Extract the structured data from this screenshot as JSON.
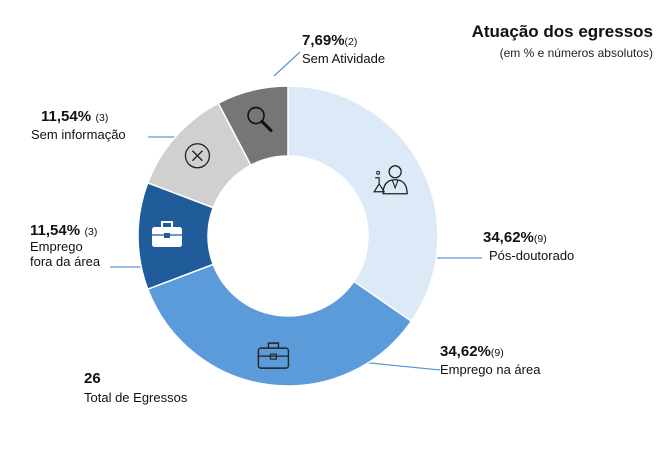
{
  "chart_data": {
    "type": "pie",
    "variant": "donut",
    "title": "Atuação dos egressos",
    "subtitle": "(em % e números absolutos)",
    "slices": [
      {
        "key": "pos",
        "label": "Pós-doutorado",
        "percent_label": "34,62%",
        "count_label": "(9)",
        "value": 9,
        "color": "#DCE9F6",
        "icon": "scientist-icon"
      },
      {
        "key": "emprego",
        "label": "Emprego na área",
        "percent_label": "34,62%",
        "count_label": "(9)",
        "value": 9,
        "color": "#5B9BD9",
        "icon": "briefcase-icon"
      },
      {
        "key": "fora",
        "label": "Emprego\nfora da área",
        "percent_label": "11,54%",
        "count_label": "(3)",
        "value": 3,
        "color": "#1F5C99",
        "icon": "briefcase-filled-icon"
      },
      {
        "key": "seminfo",
        "label": "Sem informação",
        "percent_label": "11,54%",
        "count_label": "(3)",
        "value": 3,
        "color": "#D0D0D0",
        "icon": "circle-x-icon"
      },
      {
        "key": "semativ",
        "label": "Sem Atividade",
        "percent_label": "7,69%",
        "count_label": "(2)",
        "value": 2,
        "color": "#767676",
        "icon": "magnifier-icon"
      }
    ],
    "total": {
      "value": "26",
      "label": "Total de Egressos"
    }
  }
}
